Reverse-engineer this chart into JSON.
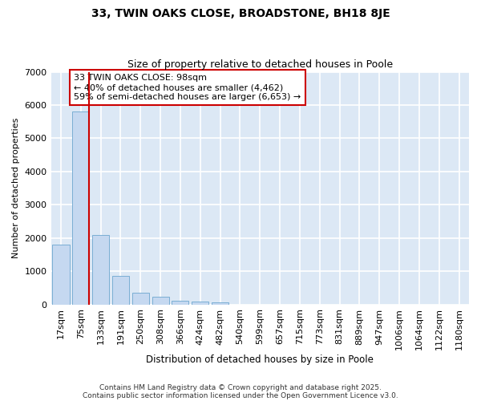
{
  "title1": "33, TWIN OAKS CLOSE, BROADSTONE, BH18 8JE",
  "title2": "Size of property relative to detached houses in Poole",
  "xlabel": "Distribution of detached houses by size in Poole",
  "ylabel": "Number of detached properties",
  "bar_labels": [
    "17sqm",
    "75sqm",
    "133sqm",
    "191sqm",
    "250sqm",
    "308sqm",
    "366sqm",
    "424sqm",
    "482sqm",
    "540sqm",
    "599sqm",
    "657sqm",
    "715sqm",
    "773sqm",
    "831sqm",
    "889sqm",
    "947sqm",
    "1006sqm",
    "1064sqm",
    "1122sqm",
    "1180sqm"
  ],
  "bar_values": [
    1790,
    5800,
    2080,
    850,
    360,
    220,
    105,
    90,
    60,
    0,
    0,
    0,
    0,
    0,
    0,
    0,
    0,
    0,
    0,
    0,
    0
  ],
  "bar_color": "#c5d8f0",
  "bar_edge_color": "#7aaed4",
  "red_line_index": 1,
  "annotation_text": "33 TWIN OAKS CLOSE: 98sqm\n← 40% of detached houses are smaller (4,462)\n59% of semi-detached houses are larger (6,653) →",
  "annotation_box_color": "white",
  "annotation_box_edge_color": "#cc0000",
  "red_line_color": "#cc0000",
  "fig_background_color": "#ffffff",
  "axes_background_color": "#dce8f5",
  "grid_color": "#ffffff",
  "ylim": [
    0,
    7000
  ],
  "footer1": "Contains HM Land Registry data © Crown copyright and database right 2025.",
  "footer2": "Contains public sector information licensed under the Open Government Licence v3.0."
}
